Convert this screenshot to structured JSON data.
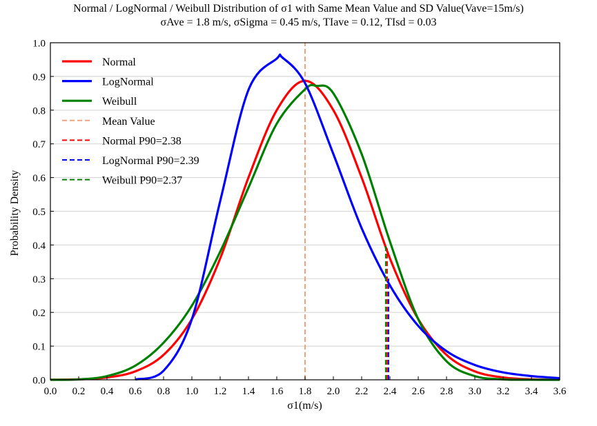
{
  "chart_data": {
    "type": "line",
    "title": "Normal / LogNormal / Weibull Distribution of σ1 with Same Mean Value and SD Value(Vave=15m/s)",
    "subtitle": "σAve = 1.8 m/s, σSigma = 0.45 m/s, TIave = 0.12, TIsd = 0.03",
    "xlabel": "σ1(m/s)",
    "ylabel": "Probability Density",
    "xlim": [
      0.0,
      3.6
    ],
    "ylim": [
      0.0,
      1.0
    ],
    "xticks": [
      "0.0",
      "0.2",
      "0.4",
      "0.6",
      "0.8",
      "1.0",
      "1.2",
      "1.4",
      "1.6",
      "1.8",
      "2.0",
      "2.2",
      "2.4",
      "2.6",
      "2.8",
      "3.0",
      "3.2",
      "3.4",
      "3.6"
    ],
    "yticks": [
      "0.0",
      "0.1",
      "0.2",
      "0.3",
      "0.4",
      "0.5",
      "0.6",
      "0.7",
      "0.8",
      "0.9",
      "1.0"
    ],
    "grid": "horizontal",
    "legend_position": "top-left",
    "mean": 1.8,
    "sd": 0.45,
    "series": [
      {
        "name": "Normal",
        "color": "#ff0000",
        "style": "solid",
        "x": [
          0.0,
          0.2,
          0.4,
          0.6,
          0.8,
          1.0,
          1.2,
          1.4,
          1.6,
          1.8,
          2.0,
          2.2,
          2.4,
          2.6,
          2.8,
          3.0,
          3.2,
          3.4,
          3.6
        ],
        "y": [
          0.0003,
          0.0015,
          0.007,
          0.025,
          0.074,
          0.18,
          0.36,
          0.6,
          0.8,
          0.887,
          0.8,
          0.6,
          0.36,
          0.18,
          0.074,
          0.025,
          0.007,
          0.0015,
          0.0003
        ]
      },
      {
        "name": "LogNormal",
        "color": "#0000ff",
        "style": "solid",
        "x": [
          0.6,
          0.8,
          1.0,
          1.2,
          1.4,
          1.6,
          1.64,
          1.8,
          2.0,
          2.2,
          2.4,
          2.6,
          2.8,
          3.0,
          3.2,
          3.4,
          3.6
        ],
        "y": [
          0.0007,
          0.027,
          0.18,
          0.53,
          0.86,
          0.953,
          0.956,
          0.88,
          0.67,
          0.45,
          0.28,
          0.16,
          0.085,
          0.044,
          0.022,
          0.011,
          0.005
        ]
      },
      {
        "name": "Weibull",
        "color": "#008000",
        "style": "solid",
        "x": [
          0.0,
          0.2,
          0.4,
          0.6,
          0.8,
          1.0,
          1.2,
          1.4,
          1.6,
          1.8,
          1.88,
          2.0,
          2.2,
          2.4,
          2.6,
          2.8,
          3.0,
          3.2,
          3.4,
          3.6
        ],
        "y": [
          0.0,
          0.0012,
          0.011,
          0.042,
          0.11,
          0.22,
          0.38,
          0.57,
          0.76,
          0.862,
          0.872,
          0.85,
          0.67,
          0.41,
          0.18,
          0.055,
          0.011,
          0.0013,
          0.0001,
          0.0
        ]
      },
      {
        "name": "Mean Value",
        "color": "#f4a07a",
        "style": "dashed",
        "x": [
          1.8,
          1.8
        ],
        "y": [
          0.0,
          1.0
        ]
      },
      {
        "name": "Normal P90=2.38",
        "color": "#ff0000",
        "style": "dashed",
        "x": [
          2.38,
          2.38
        ],
        "y": [
          0.0,
          0.39
        ]
      },
      {
        "name": "LogNormal P90=2.39",
        "color": "#0000ff",
        "style": "dashed",
        "x": [
          2.39,
          2.39
        ],
        "y": [
          0.0,
          0.3
        ]
      },
      {
        "name": "Weibull P90=2.37",
        "color": "#008000",
        "style": "dashed",
        "x": [
          2.37,
          2.37
        ],
        "y": [
          0.0,
          0.4
        ]
      }
    ]
  }
}
